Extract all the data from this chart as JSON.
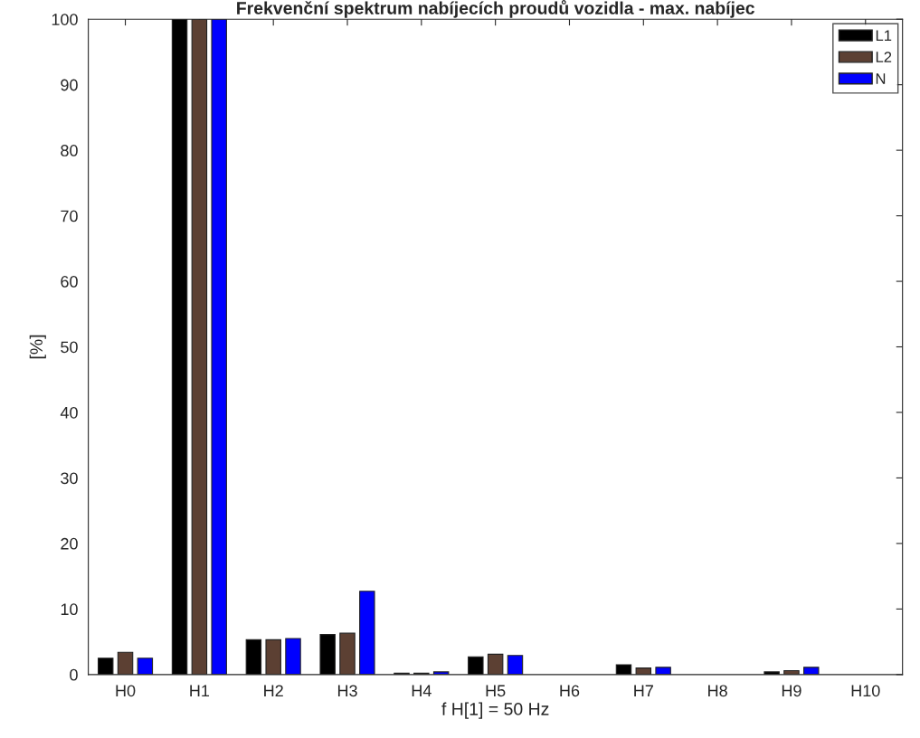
{
  "chart_data": {
    "type": "bar",
    "title": "Frekvenční spektrum nabíjecích proudů vozidla - max. nabíjec",
    "xlabel": "f H[1] = 50 Hz",
    "ylabel": "[%]",
    "categories": [
      "H0",
      "H1",
      "H2",
      "H3",
      "H4",
      "H5",
      "H6",
      "H7",
      "H8",
      "H9",
      "H10"
    ],
    "series": [
      {
        "name": "L1",
        "color": "#000000",
        "values": [
          2.5,
          100,
          5.3,
          6.1,
          0.2,
          2.7,
          0,
          1.5,
          0,
          0.4,
          0
        ]
      },
      {
        "name": "L2",
        "color": "#5c4033",
        "values": [
          3.4,
          100,
          5.3,
          6.3,
          0.2,
          3.1,
          0,
          1.0,
          0,
          0.6,
          0
        ]
      },
      {
        "name": "N",
        "color": "#0000ff",
        "values": [
          2.5,
          100,
          5.5,
          12.7,
          0.4,
          2.9,
          0,
          1.1,
          0,
          1.1,
          0
        ]
      }
    ],
    "ylim": [
      0,
      100
    ],
    "yticks": [
      0,
      10,
      20,
      30,
      40,
      50,
      60,
      70,
      80,
      90,
      100
    ],
    "grid": false,
    "legend": "top right"
  }
}
